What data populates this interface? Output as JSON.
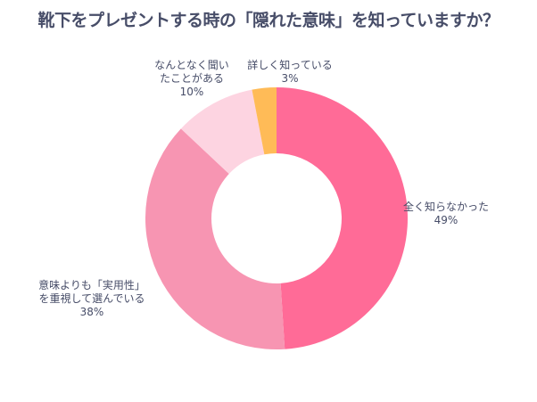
{
  "chart_data": {
    "type": "pie",
    "donut": true,
    "title": "靴下をプレゼントする時の「隠れた意味」を知っていますか？",
    "slices": [
      {
        "label": "全く知らなかった",
        "value": 49,
        "value_label": "49%",
        "color": "#FF6B97"
      },
      {
        "label": "意味よりも「実用性」を重視して選んでいる",
        "value": 38,
        "value_label": "38%",
        "color": "#F795B2"
      },
      {
        "label": "なんとなく聞いたことがある",
        "value": 10,
        "value_label": "10%",
        "color": "#FDD4E1"
      },
      {
        "label": "詳しく知っている",
        "value": 3,
        "value_label": "3%",
        "color": "#FFBB57"
      }
    ]
  }
}
